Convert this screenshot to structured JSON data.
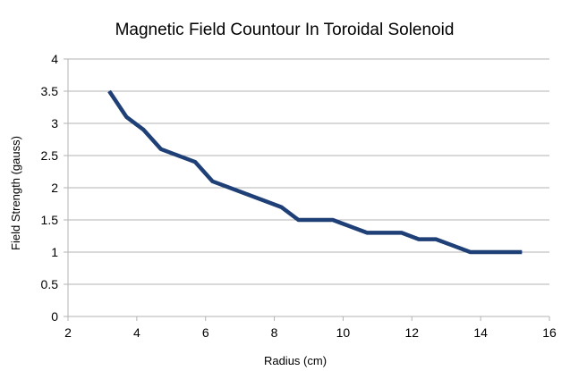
{
  "chart_data": {
    "type": "line",
    "title": "Magnetic Field Countour In Toroidal Solenoid",
    "xlabel": "Radius  (cm)",
    "ylabel": "Field Strength (gauss)",
    "xlim": [
      2,
      16
    ],
    "ylim": [
      0,
      4
    ],
    "xticks": [
      2,
      4,
      6,
      8,
      10,
      12,
      14,
      16
    ],
    "yticks": [
      0,
      0.5,
      1,
      1.5,
      2,
      2.5,
      3,
      3.5,
      4
    ],
    "grid": "horizontal",
    "legend": "none",
    "series": [
      {
        "color": "#1f3f77",
        "x": [
          3.2,
          3.7,
          4.2,
          4.7,
          5.7,
          6.2,
          8.2,
          8.7,
          9.7,
          10.7,
          11.7,
          12.2,
          12.7,
          13.7,
          14.2,
          14.7,
          15.2
        ],
        "y": [
          3.5,
          3.1,
          2.9,
          2.6,
          2.4,
          2.1,
          1.7,
          1.5,
          1.5,
          1.3,
          1.3,
          1.2,
          1.2,
          1.0,
          1.0,
          1.0,
          1.0
        ]
      }
    ]
  }
}
